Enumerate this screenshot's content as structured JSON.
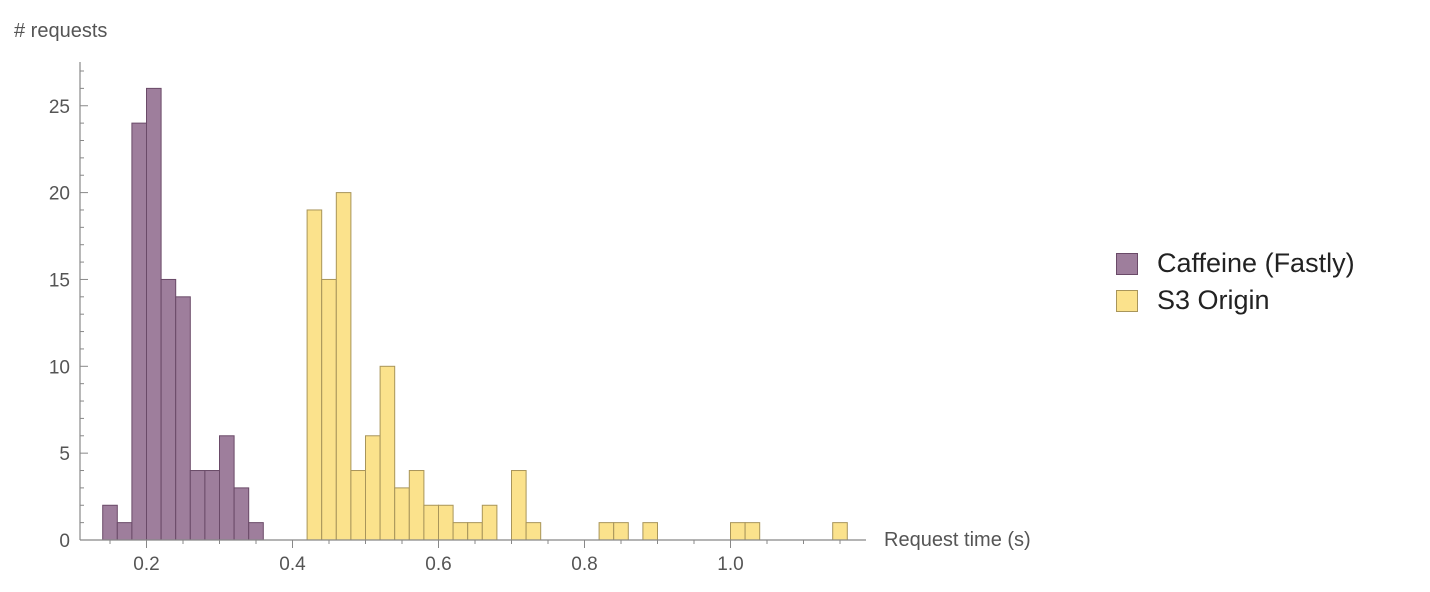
{
  "chart_data": {
    "type": "bar",
    "xlabel": "Request time (s)",
    "ylabel": "# requests",
    "xlim": [
      0.13,
      1.17
    ],
    "ylim": [
      0,
      27.5
    ],
    "bin_width": 0.02,
    "x_ticks": [
      "0.2",
      "0.4",
      "0.6",
      "0.8",
      "1.0"
    ],
    "y_ticks": [
      "0",
      "5",
      "10",
      "15",
      "20",
      "25"
    ],
    "legend_position": "right",
    "series": [
      {
        "name": "Caffeine (Fastly)",
        "color": "#9e7e9c",
        "stroke": "#6a4a68",
        "bins": [
          {
            "x0": 0.14,
            "x1": 0.16,
            "count": 2
          },
          {
            "x0": 0.16,
            "x1": 0.18,
            "count": 1
          },
          {
            "x0": 0.18,
            "x1": 0.2,
            "count": 24
          },
          {
            "x0": 0.2,
            "x1": 0.22,
            "count": 26
          },
          {
            "x0": 0.22,
            "x1": 0.24,
            "count": 15
          },
          {
            "x0": 0.24,
            "x1": 0.26,
            "count": 14
          },
          {
            "x0": 0.26,
            "x1": 0.28,
            "count": 4
          },
          {
            "x0": 0.28,
            "x1": 0.3,
            "count": 4
          },
          {
            "x0": 0.3,
            "x1": 0.32,
            "count": 6
          },
          {
            "x0": 0.32,
            "x1": 0.34,
            "count": 3
          },
          {
            "x0": 0.34,
            "x1": 0.36,
            "count": 1
          }
        ]
      },
      {
        "name": "S3 Origin",
        "color": "#fbe28c",
        "stroke": "#a8955a",
        "bins": [
          {
            "x0": 0.42,
            "x1": 0.44,
            "count": 19
          },
          {
            "x0": 0.44,
            "x1": 0.46,
            "count": 15
          },
          {
            "x0": 0.46,
            "x1": 0.48,
            "count": 20
          },
          {
            "x0": 0.48,
            "x1": 0.5,
            "count": 4
          },
          {
            "x0": 0.5,
            "x1": 0.52,
            "count": 6
          },
          {
            "x0": 0.52,
            "x1": 0.54,
            "count": 10
          },
          {
            "x0": 0.54,
            "x1": 0.56,
            "count": 3
          },
          {
            "x0": 0.56,
            "x1": 0.58,
            "count": 4
          },
          {
            "x0": 0.58,
            "x1": 0.6,
            "count": 2
          },
          {
            "x0": 0.6,
            "x1": 0.62,
            "count": 2
          },
          {
            "x0": 0.62,
            "x1": 0.64,
            "count": 1
          },
          {
            "x0": 0.64,
            "x1": 0.66,
            "count": 1
          },
          {
            "x0": 0.66,
            "x1": 0.68,
            "count": 2
          },
          {
            "x0": 0.7,
            "x1": 0.72,
            "count": 4
          },
          {
            "x0": 0.72,
            "x1": 0.74,
            "count": 1
          },
          {
            "x0": 0.82,
            "x1": 0.84,
            "count": 1
          },
          {
            "x0": 0.84,
            "x1": 0.86,
            "count": 1
          },
          {
            "x0": 0.88,
            "x1": 0.9,
            "count": 1
          },
          {
            "x0": 1.0,
            "x1": 1.02,
            "count": 1
          },
          {
            "x0": 1.02,
            "x1": 1.04,
            "count": 1
          },
          {
            "x0": 1.14,
            "x1": 1.16,
            "count": 1
          }
        ]
      }
    ]
  }
}
